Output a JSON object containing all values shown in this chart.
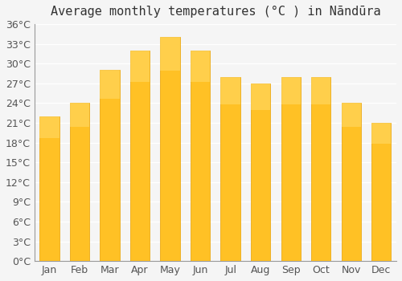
{
  "title": "Average monthly temperatures (°C ) in Nāndūra",
  "months": [
    "Jan",
    "Feb",
    "Mar",
    "Apr",
    "May",
    "Jun",
    "Jul",
    "Aug",
    "Sep",
    "Oct",
    "Nov",
    "Dec"
  ],
  "values": [
    22,
    24,
    29,
    32,
    34,
    32,
    28,
    27,
    28,
    28,
    24,
    21
  ],
  "bar_color_top": "#FFA500",
  "bar_color_bottom": "#FFB733",
  "ylim": [
    0,
    36
  ],
  "yticks": [
    0,
    3,
    6,
    9,
    12,
    15,
    18,
    21,
    24,
    27,
    30,
    33,
    36
  ],
  "ytick_labels": [
    "0°C",
    "3°C",
    "6°C",
    "9°C",
    "12°C",
    "15°C",
    "18°C",
    "21°C",
    "24°C",
    "27°C",
    "30°C",
    "33°C",
    "36°C"
  ],
  "background_color": "#f5f5f5",
  "grid_color": "#ffffff",
  "bar_edge_color": "#cccccc",
  "title_fontsize": 11,
  "tick_fontsize": 9
}
